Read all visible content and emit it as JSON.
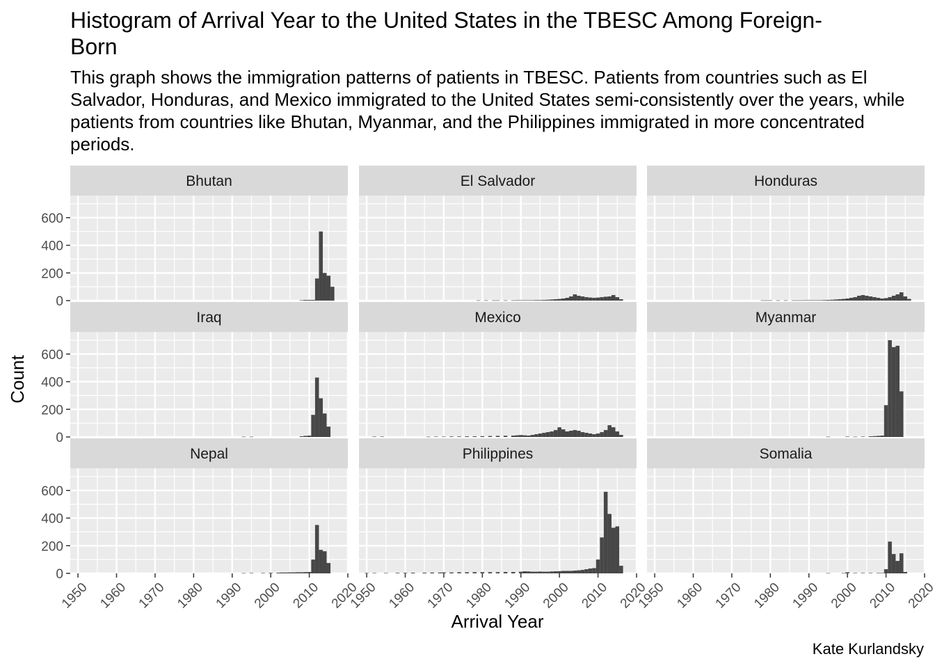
{
  "chart": {
    "title": "Histogram of Arrival Year to the United States in the TBESC Among Foreign-Born",
    "subtitle": "This graph shows the immigration patterns of patients in TBESC. Patients from countries such as El Salvador, Honduras, and Mexico immigrated to the United States semi-consistently over the years, while patients from countries like Bhutan, Myanmar, and the Philippines immigrated in more concentrated periods.",
    "caption": "Kate Kurlandsky"
  },
  "colors": {
    "panel_background": "#ebebeb",
    "grid_major": "#ffffff",
    "strip_background": "#d9d9d9",
    "bar_fill": "#474747"
  },
  "chart_data": {
    "type": "bar",
    "subtype": "faceted histogram",
    "xlabel": "Arrival Year",
    "ylabel": "Count",
    "xlim": [
      1948,
      2020
    ],
    "ylim": [
      0,
      760
    ],
    "x_ticks": [
      1950,
      1960,
      1970,
      1980,
      1990,
      2000,
      2010,
      2020
    ],
    "y_ticks": [
      0,
      200,
      400,
      600
    ],
    "bin_width": 1,
    "grid": true,
    "facets": [
      {
        "name": "Bhutan",
        "bins": [
          [
            2008,
            3
          ],
          [
            2009,
            5
          ],
          [
            2010,
            5
          ],
          [
            2011,
            5
          ],
          [
            2012,
            160
          ],
          [
            2013,
            500
          ],
          [
            2014,
            200
          ],
          [
            2015,
            180
          ],
          [
            2016,
            100
          ]
        ]
      },
      {
        "name": "El Salvador",
        "bins": [
          [
            1979,
            2
          ],
          [
            1981,
            2
          ],
          [
            1983,
            2
          ],
          [
            1984,
            2
          ],
          [
            1986,
            2
          ],
          [
            1988,
            2
          ],
          [
            1989,
            3
          ],
          [
            1990,
            3
          ],
          [
            1991,
            3
          ],
          [
            1992,
            3
          ],
          [
            1993,
            3
          ],
          [
            1994,
            4
          ],
          [
            1995,
            4
          ],
          [
            1996,
            5
          ],
          [
            1997,
            6
          ],
          [
            1998,
            8
          ],
          [
            1999,
            10
          ],
          [
            2000,
            12
          ],
          [
            2001,
            15
          ],
          [
            2002,
            20
          ],
          [
            2003,
            30
          ],
          [
            2004,
            45
          ],
          [
            2005,
            35
          ],
          [
            2006,
            30
          ],
          [
            2007,
            25
          ],
          [
            2008,
            22
          ],
          [
            2009,
            20
          ],
          [
            2010,
            22
          ],
          [
            2011,
            25
          ],
          [
            2012,
            28
          ],
          [
            2013,
            30
          ],
          [
            2014,
            40
          ],
          [
            2015,
            25
          ],
          [
            2016,
            10
          ]
        ]
      },
      {
        "name": "Honduras",
        "bins": [
          [
            1978,
            2
          ],
          [
            1979,
            2
          ],
          [
            1980,
            2
          ],
          [
            1982,
            2
          ],
          [
            1984,
            2
          ],
          [
            1986,
            2
          ],
          [
            1987,
            2
          ],
          [
            1988,
            2
          ],
          [
            1989,
            3
          ],
          [
            1990,
            3
          ],
          [
            1991,
            3
          ],
          [
            1992,
            3
          ],
          [
            1993,
            3
          ],
          [
            1994,
            4
          ],
          [
            1995,
            5
          ],
          [
            1996,
            6
          ],
          [
            1997,
            8
          ],
          [
            1998,
            10
          ],
          [
            1999,
            12
          ],
          [
            2000,
            15
          ],
          [
            2001,
            20
          ],
          [
            2002,
            25
          ],
          [
            2003,
            35
          ],
          [
            2004,
            40
          ],
          [
            2005,
            35
          ],
          [
            2006,
            30
          ],
          [
            2007,
            25
          ],
          [
            2008,
            20
          ],
          [
            2009,
            15
          ],
          [
            2010,
            18
          ],
          [
            2011,
            25
          ],
          [
            2012,
            35
          ],
          [
            2013,
            45
          ],
          [
            2014,
            60
          ],
          [
            2015,
            30
          ],
          [
            2016,
            12
          ]
        ]
      },
      {
        "name": "Iraq",
        "bins": [
          [
            1993,
            2
          ],
          [
            1995,
            2
          ],
          [
            2008,
            5
          ],
          [
            2009,
            8
          ],
          [
            2010,
            10
          ],
          [
            2011,
            160
          ],
          [
            2012,
            430
          ],
          [
            2013,
            280
          ],
          [
            2014,
            170
          ],
          [
            2015,
            75
          ]
        ]
      },
      {
        "name": "Mexico",
        "bins": [
          [
            1952,
            3
          ],
          [
            1954,
            3
          ],
          [
            1966,
            2
          ],
          [
            1968,
            3
          ],
          [
            1970,
            3
          ],
          [
            1972,
            4
          ],
          [
            1974,
            4
          ],
          [
            1976,
            5
          ],
          [
            1978,
            5
          ],
          [
            1980,
            6
          ],
          [
            1982,
            7
          ],
          [
            1984,
            8
          ],
          [
            1986,
            9
          ],
          [
            1988,
            10
          ],
          [
            1989,
            12
          ],
          [
            1990,
            14
          ],
          [
            1991,
            12
          ],
          [
            1992,
            10
          ],
          [
            1993,
            15
          ],
          [
            1994,
            20
          ],
          [
            1995,
            25
          ],
          [
            1996,
            30
          ],
          [
            1997,
            35
          ],
          [
            1998,
            40
          ],
          [
            1999,
            50
          ],
          [
            2000,
            70
          ],
          [
            2001,
            55
          ],
          [
            2002,
            40
          ],
          [
            2003,
            45
          ],
          [
            2004,
            50
          ],
          [
            2005,
            45
          ],
          [
            2006,
            35
          ],
          [
            2007,
            30
          ],
          [
            2008,
            25
          ],
          [
            2009,
            20
          ],
          [
            2010,
            25
          ],
          [
            2011,
            35
          ],
          [
            2012,
            50
          ],
          [
            2013,
            85
          ],
          [
            2014,
            70
          ],
          [
            2015,
            40
          ],
          [
            2016,
            15
          ]
        ]
      },
      {
        "name": "Myanmar",
        "bins": [
          [
            1995,
            2
          ],
          [
            2000,
            3
          ],
          [
            2002,
            2
          ],
          [
            2004,
            3
          ],
          [
            2006,
            5
          ],
          [
            2007,
            6
          ],
          [
            2008,
            8
          ],
          [
            2009,
            10
          ],
          [
            2010,
            230
          ],
          [
            2011,
            700
          ],
          [
            2012,
            650
          ],
          [
            2013,
            660
          ],
          [
            2014,
            330
          ]
        ]
      },
      {
        "name": "Nepal",
        "bins": [
          [
            1993,
            2
          ],
          [
            1995,
            3
          ],
          [
            1998,
            3
          ],
          [
            2000,
            4
          ],
          [
            2002,
            5
          ],
          [
            2003,
            6
          ],
          [
            2004,
            6
          ],
          [
            2005,
            7
          ],
          [
            2006,
            7
          ],
          [
            2007,
            8
          ],
          [
            2008,
            8
          ],
          [
            2009,
            9
          ],
          [
            2010,
            10
          ],
          [
            2011,
            100
          ],
          [
            2012,
            350
          ],
          [
            2013,
            170
          ],
          [
            2014,
            160
          ],
          [
            2015,
            75
          ]
        ]
      },
      {
        "name": "Philippines",
        "bins": [
          [
            1950,
            3
          ],
          [
            1952,
            3
          ],
          [
            1955,
            3
          ],
          [
            1958,
            4
          ],
          [
            1960,
            4
          ],
          [
            1962,
            5
          ],
          [
            1965,
            5
          ],
          [
            1967,
            6
          ],
          [
            1969,
            6
          ],
          [
            1970,
            7
          ],
          [
            1972,
            7
          ],
          [
            1974,
            8
          ],
          [
            1976,
            8
          ],
          [
            1978,
            9
          ],
          [
            1980,
            9
          ],
          [
            1982,
            9
          ],
          [
            1984,
            9
          ],
          [
            1986,
            10
          ],
          [
            1988,
            10
          ],
          [
            1990,
            12
          ],
          [
            1991,
            15
          ],
          [
            1992,
            14
          ],
          [
            1993,
            12
          ],
          [
            1994,
            12
          ],
          [
            1995,
            13
          ],
          [
            1996,
            12
          ],
          [
            1997,
            12
          ],
          [
            1998,
            14
          ],
          [
            1999,
            15
          ],
          [
            2000,
            16
          ],
          [
            2001,
            18
          ],
          [
            2002,
            18
          ],
          [
            2003,
            18
          ],
          [
            2004,
            20
          ],
          [
            2005,
            22
          ],
          [
            2006,
            25
          ],
          [
            2007,
            30
          ],
          [
            2008,
            35
          ],
          [
            2009,
            38
          ],
          [
            2010,
            100
          ],
          [
            2011,
            260
          ],
          [
            2012,
            590
          ],
          [
            2013,
            430
          ],
          [
            2014,
            330
          ],
          [
            2015,
            340
          ],
          [
            2016,
            55
          ]
        ]
      },
      {
        "name": "Somalia",
        "bins": [
          [
            1995,
            2
          ],
          [
            1999,
            2
          ],
          [
            2000,
            8
          ],
          [
            2002,
            3
          ],
          [
            2004,
            3
          ],
          [
            2006,
            3
          ],
          [
            2008,
            3
          ],
          [
            2009,
            3
          ],
          [
            2010,
            30
          ],
          [
            2011,
            230
          ],
          [
            2012,
            140
          ],
          [
            2013,
            90
          ],
          [
            2014,
            145
          ],
          [
            2015,
            10
          ]
        ]
      }
    ]
  }
}
